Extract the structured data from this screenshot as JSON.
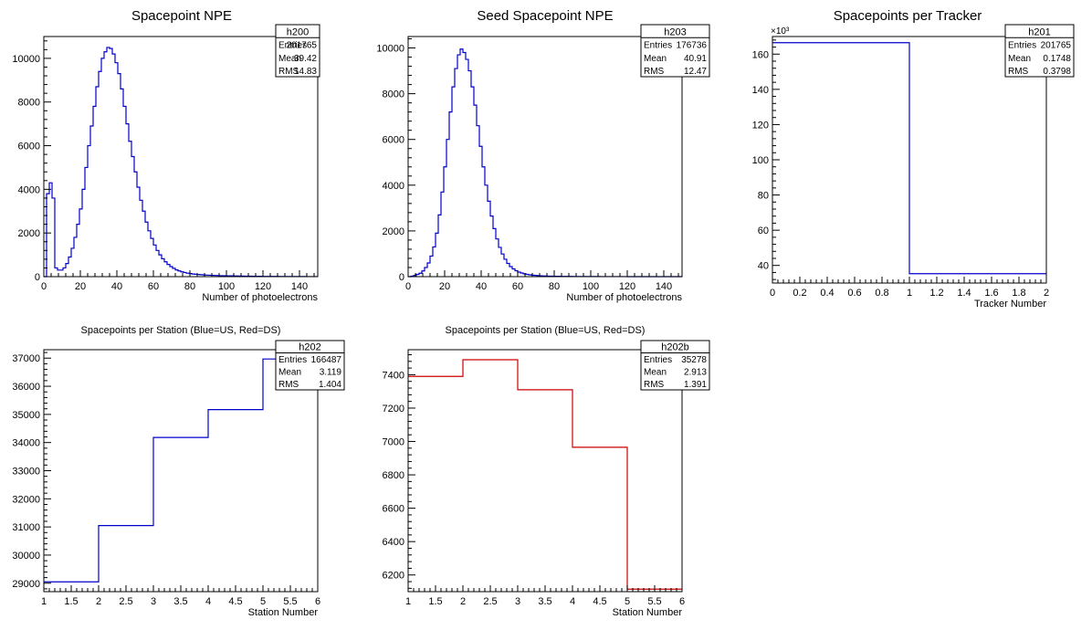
{
  "colors": {
    "blue": "#0000cc",
    "red": "#cc0000",
    "axis": "#000000",
    "background": "#ffffff"
  },
  "chart_data": [
    {
      "id": "h200",
      "type": "histogram",
      "title": "Spacepoint NPE",
      "xlabel": "Number of photoelectrons",
      "ylabel": "",
      "xlim": [
        0,
        150
      ],
      "ylim": [
        0,
        11000
      ],
      "color": "blue",
      "xticks": [
        0,
        20,
        40,
        60,
        80,
        100,
        120,
        140
      ],
      "xtick_labels": [
        "0",
        "20",
        "40",
        "60",
        "80",
        "100",
        "120",
        "140"
      ],
      "yticks": [
        0,
        2000,
        4000,
        6000,
        8000,
        10000
      ],
      "ytick_labels": [
        "0",
        "2000",
        "4000",
        "6000",
        "8000",
        "10000"
      ],
      "y_exponent_label": "",
      "stats": {
        "name": "h200",
        "rows": [
          [
            "Entries",
            "201765"
          ],
          [
            "Mean",
            "39.42"
          ],
          [
            "RMS",
            "14.83"
          ]
        ]
      },
      "bins": {
        "start": 0,
        "width": 1.5,
        "values": [
          0,
          3800,
          4300,
          3600,
          400,
          300,
          300,
          400,
          600,
          900,
          1300,
          1800,
          2400,
          3100,
          4000,
          5000,
          6000,
          6900,
          7800,
          8700,
          9400,
          10000,
          10300,
          10500,
          10450,
          10200,
          9800,
          9300,
          8600,
          7800,
          7000,
          6200,
          5500,
          4800,
          4100,
          3500,
          3000,
          2500,
          2100,
          1750,
          1450,
          1200,
          1000,
          820,
          680,
          560,
          460,
          380,
          310,
          260,
          220,
          190,
          160,
          140,
          120,
          110,
          100,
          90,
          80,
          70,
          65,
          60,
          55,
          50,
          45,
          42,
          40,
          38,
          35,
          33,
          30,
          28,
          26,
          24,
          22,
          20,
          18,
          17,
          16,
          15,
          14,
          13,
          12,
          11,
          10,
          9,
          8,
          8,
          7,
          7,
          6,
          6,
          5,
          5,
          4,
          4,
          3,
          3,
          2,
          2
        ]
      }
    },
    {
      "id": "h203",
      "type": "histogram",
      "title": "Seed Spacepoint NPE",
      "xlabel": "Number of photoelectrons",
      "ylabel": "",
      "xlim": [
        0,
        150
      ],
      "ylim": [
        0,
        10500
      ],
      "color": "blue",
      "xticks": [
        0,
        20,
        40,
        60,
        80,
        100,
        120,
        140
      ],
      "xtick_labels": [
        "0",
        "20",
        "40",
        "60",
        "80",
        "100",
        "120",
        "140"
      ],
      "yticks": [
        0,
        2000,
        4000,
        6000,
        8000,
        10000
      ],
      "ytick_labels": [
        "0",
        "2000",
        "4000",
        "6000",
        "8000",
        "10000"
      ],
      "y_exponent_label": "",
      "stats": {
        "name": "h203",
        "rows": [
          [
            "Entries",
            "176736"
          ],
          [
            "Mean",
            "40.91"
          ],
          [
            "RMS",
            "12.47"
          ]
        ]
      },
      "bins": {
        "start": 0,
        "width": 1.5,
        "values": [
          0,
          20,
          50,
          100,
          150,
          250,
          400,
          600,
          900,
          1300,
          1900,
          2700,
          3700,
          4800,
          6000,
          7200,
          8300,
          9100,
          9700,
          9950,
          9800,
          9500,
          9000,
          8300,
          7500,
          6600,
          5700,
          4800,
          4000,
          3300,
          2650,
          2100,
          1650,
          1280,
          990,
          760,
          580,
          440,
          340,
          260,
          200,
          160,
          125,
          100,
          80,
          65,
          55,
          45,
          38,
          32,
          27,
          23,
          20,
          18,
          16,
          14,
          12,
          11,
          10,
          9,
          8,
          7,
          7,
          6,
          6,
          5,
          5,
          4,
          4,
          4,
          3,
          3,
          3,
          3,
          2,
          2,
          2,
          2,
          2,
          2,
          1,
          1,
          1,
          1,
          1,
          1,
          1,
          1,
          1,
          1,
          1,
          1,
          1,
          1,
          1,
          1,
          1,
          1,
          1,
          1
        ]
      }
    },
    {
      "id": "h201",
      "type": "histogram",
      "title": "Spacepoints per Tracker",
      "xlabel": "Tracker Number",
      "ylabel": "",
      "xlim": [
        0,
        2
      ],
      "ylim": [
        30,
        170
      ],
      "color": "blue",
      "xticks": [
        0,
        0.2,
        0.4,
        0.6,
        0.8,
        1,
        1.2,
        1.4,
        1.6,
        1.8,
        2
      ],
      "xtick_labels": [
        "0",
        "0.2",
        "0.4",
        "0.6",
        "0.8",
        "1",
        "1.2",
        "1.4",
        "1.6",
        "1.8",
        "2"
      ],
      "yticks": [
        40,
        60,
        80,
        100,
        120,
        140,
        160
      ],
      "ytick_labels": [
        "40",
        "60",
        "80",
        "100",
        "120",
        "140",
        "160"
      ],
      "y_exponent_label": "×10³",
      "stats": {
        "name": "h201",
        "rows": [
          [
            "Entries",
            "201765"
          ],
          [
            "Mean",
            "0.1748"
          ],
          [
            "RMS",
            "0.3798"
          ]
        ]
      },
      "bins": {
        "start": 0,
        "width": 1,
        "values": [
          166.5,
          35.3
        ]
      }
    },
    {
      "id": "h202",
      "type": "histogram",
      "title": "Spacepoints per Station (Blue=US, Red=DS)",
      "xlabel": "Station Number",
      "ylabel": "",
      "xlim": [
        1,
        6
      ],
      "ylim": [
        28700,
        37300
      ],
      "color": "blue",
      "xticks": [
        1,
        1.5,
        2,
        2.5,
        3,
        3.5,
        4,
        4.5,
        5,
        5.5,
        6
      ],
      "xtick_labels": [
        "1",
        "1.5",
        "2",
        "2.5",
        "3",
        "3.5",
        "4",
        "4.5",
        "5",
        "5.5",
        "6"
      ],
      "yticks": [
        29000,
        30000,
        31000,
        32000,
        33000,
        34000,
        35000,
        36000,
        37000
      ],
      "ytick_labels": [
        "29000",
        "30000",
        "31000",
        "32000",
        "33000",
        "34000",
        "35000",
        "36000",
        "37000"
      ],
      "y_exponent_label": "",
      "stats": {
        "name": "h202",
        "rows": [
          [
            "Entries",
            "166487"
          ],
          [
            "Mean",
            "3.119"
          ],
          [
            "RMS",
            "1.404"
          ]
        ]
      },
      "bins": {
        "start": 1,
        "width": 1,
        "values": [
          29050,
          31050,
          34180,
          35170,
          36970
        ]
      }
    },
    {
      "id": "h202b",
      "type": "histogram",
      "title": "Spacepoints per Station (Blue=US, Red=DS)",
      "xlabel": "Station Number",
      "ylabel": "",
      "xlim": [
        1,
        6
      ],
      "ylim": [
        6100,
        7550
      ],
      "color": "red",
      "xticks": [
        1,
        1.5,
        2,
        2.5,
        3,
        3.5,
        4,
        4.5,
        5,
        5.5,
        6
      ],
      "xtick_labels": [
        "1",
        "1.5",
        "2",
        "2.5",
        "3",
        "3.5",
        "4",
        "4.5",
        "5",
        "5.5",
        "6"
      ],
      "yticks": [
        6200,
        6400,
        6600,
        6800,
        7000,
        7200,
        7400
      ],
      "ytick_labels": [
        "6200",
        "6400",
        "6600",
        "6800",
        "7000",
        "7200",
        "7400"
      ],
      "y_exponent_label": "",
      "stats": {
        "name": "h202b",
        "rows": [
          [
            "Entries",
            "35278"
          ],
          [
            "Mean",
            "2.913"
          ],
          [
            "RMS",
            "1.391"
          ]
        ]
      },
      "bins": {
        "start": 1,
        "width": 1,
        "values": [
          7390,
          7490,
          7310,
          6965,
          6115
        ]
      }
    }
  ]
}
